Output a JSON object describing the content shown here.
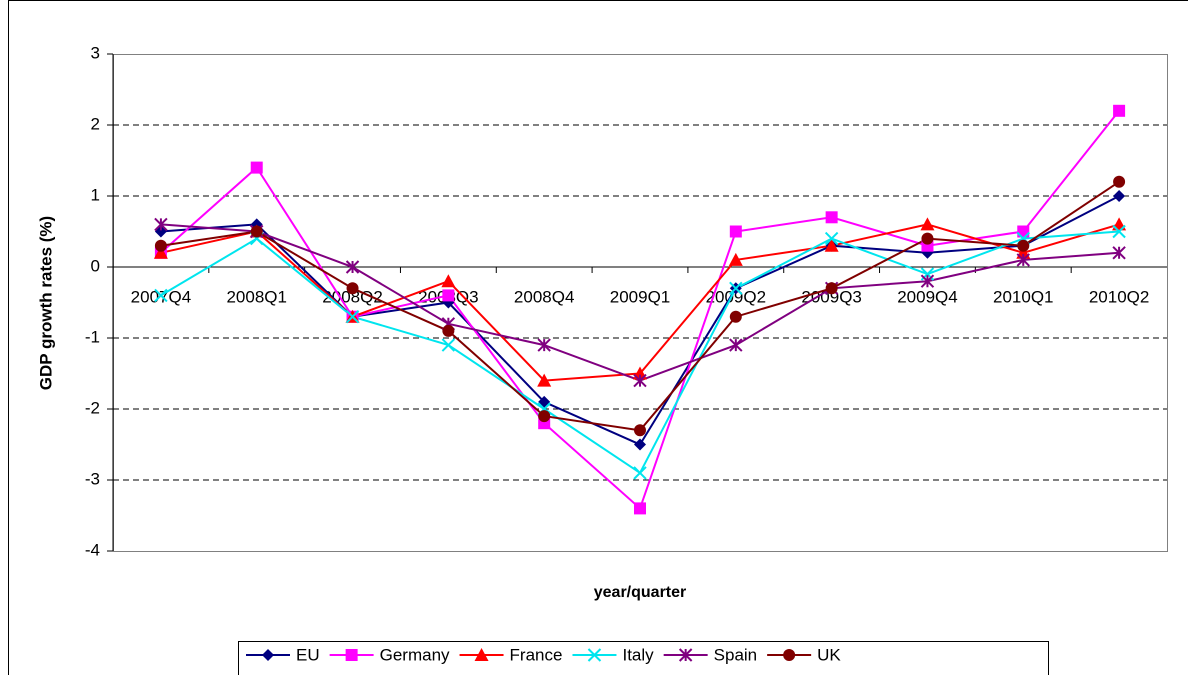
{
  "chart_data": {
    "type": "line",
    "x_label": "year/quarter",
    "y_label": "GDP growth rates (%)",
    "categories": [
      "2007Q4",
      "2008Q1",
      "2008Q2",
      "2008Q3",
      "2008Q4",
      "2009Q1",
      "2009Q2",
      "2009Q3",
      "2009Q4",
      "2010Q1",
      "2010Q2"
    ],
    "series": [
      {
        "name": "EU",
        "color": "#000080",
        "marker": "diamond",
        "values": [
          0.5,
          0.6,
          -0.7,
          -0.5,
          -1.9,
          -2.5,
          -0.3,
          0.3,
          0.2,
          0.3,
          1.0
        ]
      },
      {
        "name": "Germany",
        "color": "#ff00ff",
        "marker": "square",
        "values": [
          0.2,
          1.4,
          -0.7,
          -0.4,
          -2.2,
          -3.4,
          0.5,
          0.7,
          0.3,
          0.5,
          2.2
        ]
      },
      {
        "name": "France",
        "color": "#ff0000",
        "marker": "triangle",
        "values": [
          0.2,
          0.5,
          -0.7,
          -0.2,
          -1.6,
          -1.5,
          0.1,
          0.3,
          0.6,
          0.2,
          0.6
        ]
      },
      {
        "name": "Italy",
        "color": "#00e5ee",
        "marker": "x",
        "values": [
          -0.4,
          0.4,
          -0.7,
          -1.1,
          -2.0,
          -2.9,
          -0.3,
          0.4,
          -0.1,
          0.4,
          0.5
        ]
      },
      {
        "name": "Spain",
        "color": "#800080",
        "marker": "star",
        "values": [
          0.6,
          0.5,
          0.0,
          -0.8,
          -1.1,
          -1.6,
          -1.1,
          -0.3,
          -0.2,
          0.1,
          0.2
        ]
      },
      {
        "name": "UK",
        "color": "#800000",
        "marker": "circle",
        "values": [
          0.3,
          0.5,
          -0.3,
          -0.9,
          -2.1,
          -2.3,
          -0.7,
          -0.3,
          0.4,
          0.3,
          1.2
        ]
      }
    ],
    "ylim": [
      -4,
      3
    ],
    "yticks": [
      -4,
      -3,
      -2,
      -1,
      0,
      1,
      2,
      3
    ],
    "grid": true,
    "legend": "bottom"
  }
}
